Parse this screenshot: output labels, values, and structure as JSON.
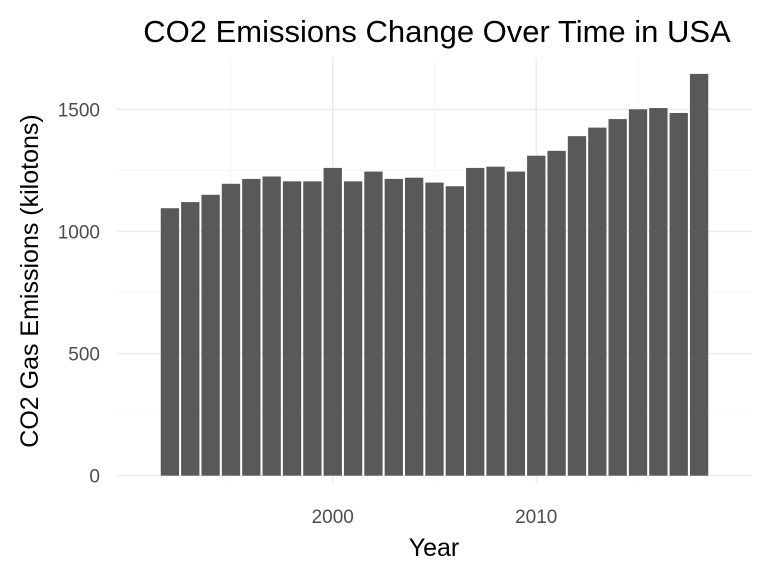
{
  "chart_data": {
    "type": "bar",
    "title": "CO2 Emissions Change Over Time in USA",
    "xlabel": "Year",
    "ylabel": "CO2 Gas Emissions (kilotons)",
    "x": [
      1992,
      1993,
      1994,
      1995,
      1996,
      1997,
      1998,
      1999,
      2000,
      2001,
      2002,
      2003,
      2004,
      2005,
      2006,
      2007,
      2008,
      2009,
      2010,
      2011,
      2012,
      2013,
      2014,
      2015,
      2016,
      2017,
      2018
    ],
    "values": [
      1095,
      1120,
      1150,
      1195,
      1215,
      1225,
      1205,
      1205,
      1260,
      1205,
      1245,
      1215,
      1220,
      1200,
      1185,
      1260,
      1265,
      1245,
      1310,
      1330,
      1390,
      1425,
      1460,
      1500,
      1505,
      1485,
      1645
    ],
    "xlim": [
      1989.4,
      2020.6
    ],
    "ylim": [
      -30,
      1710
    ],
    "x_ticks": [
      2000,
      2010
    ],
    "x_minor_ticks": [
      1995,
      2005,
      2015
    ],
    "y_ticks": [
      0,
      500,
      1000,
      1500
    ],
    "y_minor_ticks": [
      250,
      750,
      1250
    ],
    "bar_color": "#595959",
    "grid": true,
    "theme": "minimal"
  }
}
